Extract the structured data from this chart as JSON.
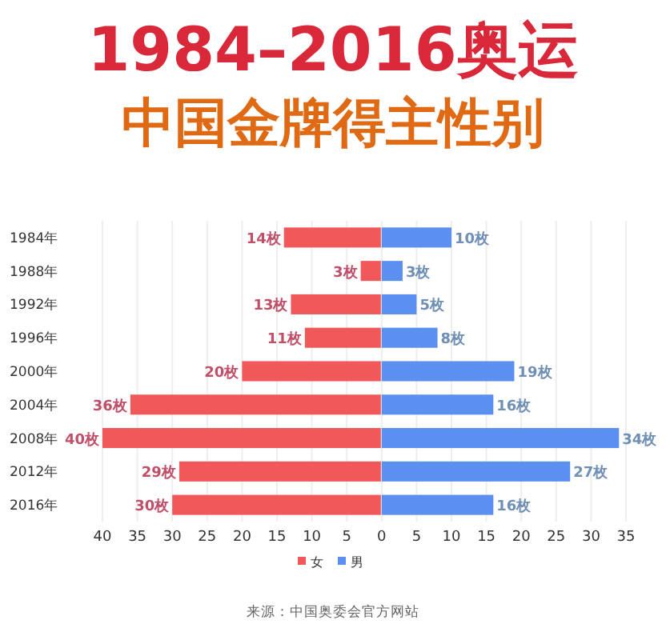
{
  "chart_data": [
    {
      "type": "bar",
      "orientation": "horizontal",
      "title": "1984–2016奥运",
      "subtitle": "中国金牌得主性别",
      "categories": [
        "1984年",
        "1988年",
        "1992年",
        "1996年",
        "2000年",
        "2004年",
        "2008年",
        "2012年",
        "2016年"
      ],
      "series": [
        {
          "name": "女",
          "color": "#f0585a",
          "values": [
            14,
            3,
            13,
            11,
            20,
            36,
            40,
            29,
            30
          ],
          "value_labels": [
            "14枚",
            "3枚",
            "13枚",
            "11枚",
            "20枚",
            "36枚",
            "40枚",
            "29枚",
            "30枚"
          ]
        }
      ],
      "xlim": [
        40,
        0
      ],
      "xticks": [
        40,
        35,
        30,
        25,
        20,
        15,
        10,
        5,
        0
      ],
      "grid": "x",
      "legend": "bottom"
    },
    {
      "type": "bar",
      "orientation": "horizontal",
      "categories": [
        null,
        null,
        null,
        null,
        null,
        null,
        null,
        null,
        null
      ],
      "series": [
        {
          "name": "男",
          "color": "#5b8ff0",
          "values": [
            10,
            3,
            5,
            8,
            19,
            16,
            34,
            27,
            16
          ],
          "value_labels": [
            "10枚",
            "3枚",
            "5枚",
            "8枚",
            "19枚",
            "16枚",
            "34枚",
            "27枚",
            "16枚"
          ]
        }
      ],
      "xlim": [
        0,
        35
      ],
      "xticks": [
        {
          "value": 0,
          "label": null
        },
        5,
        10,
        15,
        20,
        25,
        30,
        35
      ],
      "grid": "x",
      "legend": "bottom",
      "tick_labels": "x",
      "annotations": [
        "来源：中国奥委会官方网站"
      ]
    }
  ]
}
